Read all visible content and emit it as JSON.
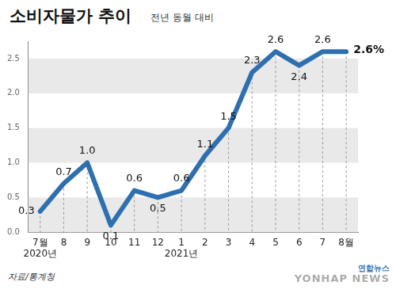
{
  "chart_data": {
    "type": "line",
    "title": "소비자물가 추이",
    "subtitle": "전년 동월 대비",
    "source": "자료/통계청",
    "credit": [
      "연합뉴스",
      "YONHAP NEWS"
    ],
    "categories": [
      "7월",
      "8",
      "9",
      "10",
      "11",
      "12",
      "1",
      "2",
      "3",
      "4",
      "5",
      "6",
      "7",
      "8월"
    ],
    "year_labels": [
      "2020년",
      null,
      null,
      null,
      null,
      null,
      "2021년",
      null,
      null,
      null,
      null,
      null,
      null,
      null
    ],
    "values": [
      0.3,
      0.7,
      1.0,
      0.1,
      0.6,
      0.5,
      0.6,
      1.1,
      1.5,
      2.3,
      2.6,
      2.4,
      2.6,
      2.6
    ],
    "value_labels": [
      "0.3",
      "0.7",
      "1.0",
      "0.1",
      "0.6",
      "0.5",
      "0.6",
      "1.1",
      "1.5",
      "2.3",
      "2.6",
      "2.4",
      "2.6",
      "2.6%"
    ],
    "data_labels": true,
    "color": "#2e6fb0",
    "marker": "none",
    "ylim": [
      0,
      2.75
    ],
    "yticks": [
      {
        "value": 0,
        "label": "0.0"
      },
      {
        "value": 0.5,
        "label": "0.5"
      },
      {
        "value": 1,
        "label": "1.0"
      },
      {
        "value": 1.5,
        "label": "1.5"
      },
      {
        "value": 2,
        "label": "2.0"
      },
      {
        "value": 2.5,
        "label": "2.5"
      }
    ],
    "grid": true
  }
}
